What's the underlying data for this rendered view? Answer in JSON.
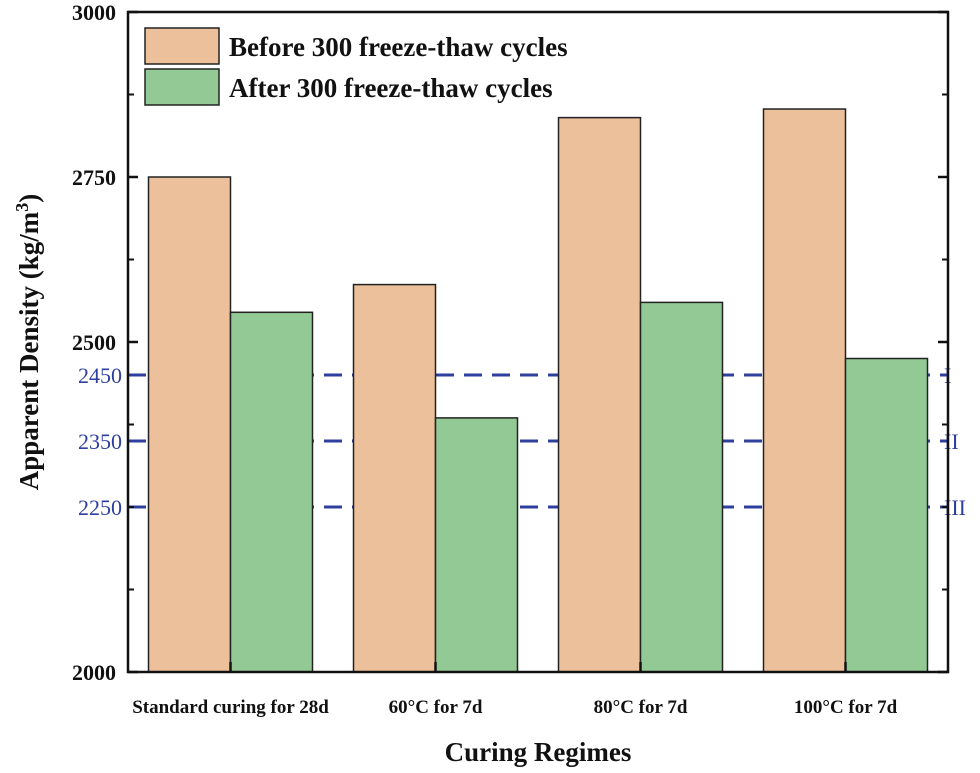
{
  "chart_data": {
    "type": "bar",
    "title": "",
    "xlabel": "Curing Regimes",
    "ylabel": "Apparent Density (kg/m",
    "ylabel_superscript": "3",
    "ylabel_suffix": ")",
    "ylim": [
      2000,
      3000
    ],
    "yticks": [
      "2000",
      "2500",
      "2750",
      "3000"
    ],
    "categories": [
      "Standard curing for 28d",
      "60°C for 7d",
      "80°C for 7d",
      "100°C for 7d"
    ],
    "series": [
      {
        "name": "Before 300 freeze-thaw cycles",
        "color": "#EDC09C",
        "values": [
          2750,
          2587,
          2840,
          2853
        ]
      },
      {
        "name": "After 300 freeze-thaw cycles",
        "color": "#93C995",
        "values": [
          2545,
          2385,
          2560,
          2475
        ]
      }
    ],
    "reference_lines": [
      {
        "value": 2450,
        "value_label": "2450",
        "label": "I"
      },
      {
        "value": 2350,
        "value_label": "2350",
        "label": "II"
      },
      {
        "value": 2250,
        "value_label": "2250",
        "label": "III"
      }
    ],
    "reference_color": "#2E3F9E",
    "legend_position": "top-left"
  }
}
